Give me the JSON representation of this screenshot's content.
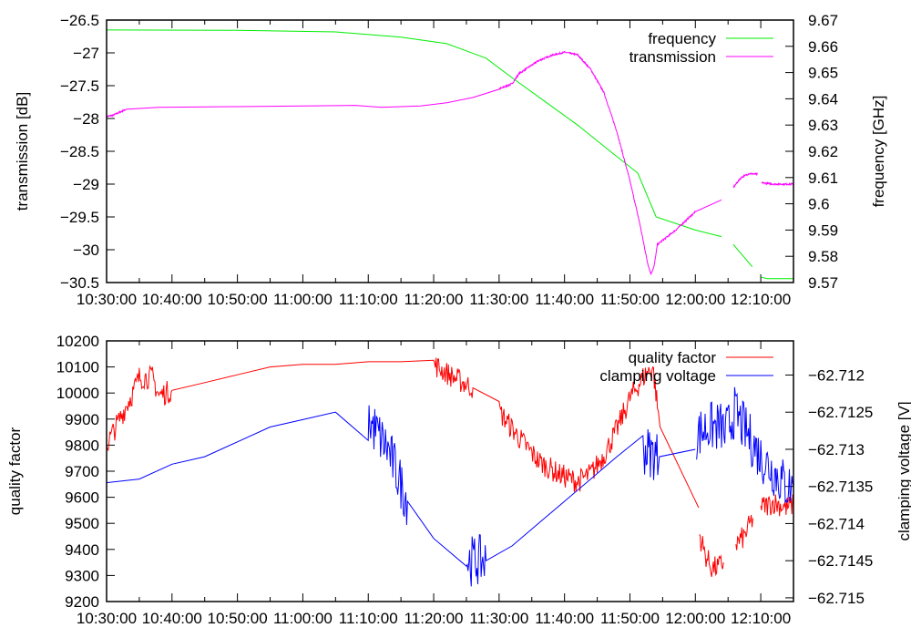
{
  "chart_data": [
    {
      "type": "line",
      "x_unit": "minutes after 10:30:00",
      "xlim": [
        0,
        105
      ],
      "x_tick_labels": [
        "10:30:00",
        "10:40:00",
        "10:50:00",
        "11:00:00",
        "11:10:00",
        "11:20:00",
        "11:30:00",
        "11:40:00",
        "11:50:00",
        "12:00:00",
        "12:10:00"
      ],
      "ylabel": "transmission [dB]",
      "ylim": [
        -30.5,
        -26.5
      ],
      "y_tick_labels": [
        "-26.5",
        "-27",
        "-27.5",
        "-28",
        "-28.5",
        "-29",
        "-29.5",
        "-30",
        "-30.5"
      ],
      "y2label": "frequency [GHz]",
      "y2lim": [
        9.57,
        9.67
      ],
      "y2_tick_labels": [
        "9.67",
        "9.66",
        "9.65",
        "9.64",
        "9.63",
        "9.62",
        "9.61",
        "9.6",
        "9.59",
        "9.58",
        "9.57"
      ],
      "legend_position": "top-right",
      "series": [
        {
          "name": "frequency",
          "axis": "y2",
          "color": "#00ee00",
          "noise": 0,
          "segments": [
            [
              [
                0,
                9.6662
              ],
              [
                20,
                9.6661
              ],
              [
                35,
                9.6655
              ],
              [
                45,
                9.6635
              ],
              [
                52,
                9.661
              ],
              [
                58,
                9.6555
              ],
              [
                62,
                9.648
              ],
              [
                67,
                9.639
              ],
              [
                72,
                9.63
              ],
              [
                77,
                9.62
              ],
              [
                81.2,
                9.6117
              ],
              [
                84,
                9.595
              ],
              [
                90,
                9.59
              ],
              [
                94,
                9.5875
              ]
            ],
            [
              [
                95.8,
                9.5845
              ],
              [
                98.7,
                9.576
              ]
            ],
            [
              [
                100.1,
                9.572
              ],
              [
                101,
                9.5715
              ],
              [
                105,
                9.5715
              ]
            ]
          ]
        },
        {
          "name": "transmission",
          "axis": "y",
          "color": "#ff00ff",
          "noise": 0.012,
          "segments": [
            [
              [
                0,
                -27.97
              ],
              [
                1,
                -27.95
              ],
              [
                3,
                -27.86
              ],
              [
                8,
                -27.83
              ],
              [
                20,
                -27.82
              ],
              [
                30,
                -27.81
              ],
              [
                38,
                -27.8
              ],
              [
                42,
                -27.83
              ],
              [
                48,
                -27.81
              ],
              [
                52,
                -27.76
              ],
              [
                56,
                -27.68
              ],
              [
                60,
                -27.55
              ],
              [
                62,
                -27.47
              ],
              [
                63,
                -27.32
              ],
              [
                66,
                -27.12
              ],
              [
                68,
                -27.04
              ],
              [
                70,
                -26.99
              ],
              [
                72,
                -27.03
              ],
              [
                74,
                -27.25
              ],
              [
                76,
                -27.6
              ],
              [
                78,
                -28.2
              ],
              [
                80,
                -28.95
              ],
              [
                81.5,
                -29.6
              ],
              [
                82.7,
                -30.2
              ],
              [
                83.2,
                -30.37
              ],
              [
                83.7,
                -30.25
              ],
              [
                84.2,
                -29.92
              ],
              [
                87,
                -29.7
              ],
              [
                90,
                -29.42
              ],
              [
                94,
                -29.24
              ]
            ],
            [
              [
                95.8,
                -29.05
              ],
              [
                97,
                -28.9
              ],
              [
                98.2,
                -28.84
              ],
              [
                99.5,
                -28.85
              ]
            ],
            [
              [
                100.1,
                -28.98
              ],
              [
                102,
                -29.0
              ],
              [
                105,
                -29.0
              ]
            ]
          ]
        }
      ]
    },
    {
      "type": "line",
      "x_unit": "minutes after 10:30:00",
      "xlim": [
        0,
        105
      ],
      "x_tick_labels": [
        "10:30:00",
        "10:40:00",
        "10:50:00",
        "11:00:00",
        "11:10:00",
        "11:20:00",
        "11:30:00",
        "11:40:00",
        "11:50:00",
        "12:00:00",
        "12:10:00"
      ],
      "ylabel": "quality factor",
      "ylim": [
        9200,
        10200
      ],
      "y_tick_labels": [
        "10200",
        "10100",
        "10000",
        "9900",
        "9800",
        "9700",
        "9600",
        "9500",
        "9400",
        "9300",
        "9200"
      ],
      "y2label": "clamping voltage [V]",
      "y2lim": [
        -62.71505,
        -62.71154
      ],
      "y2_tick_labels": [
        "-62.712",
        "-62.7125",
        "-62.713",
        "-62.7135",
        "-62.714",
        "-62.7145",
        "-62.715"
      ],
      "legend_position": "top-right",
      "series": [
        {
          "name": "quality factor",
          "axis": "y",
          "color": "#ff0000",
          "noise": 45,
          "segments": [
            [
              [
                0,
                9800
              ],
              [
                2,
                9900
              ],
              [
                4,
                10000
              ],
              [
                5,
                10060
              ],
              [
                7,
                10060
              ],
              [
                8,
                9990
              ],
              [
                10,
                10010
              ],
              [
                15,
                10040
              ],
              [
                20,
                10070
              ],
              [
                25,
                10100
              ],
              [
                30,
                10110
              ],
              [
                35,
                10110
              ],
              [
                40,
                10120
              ],
              [
                45,
                10120
              ],
              [
                50,
                10110
              ],
              [
                53,
                10060
              ],
              [
                56,
                10020
              ],
              [
                60,
                9930
              ],
              [
                63,
                9830
              ],
              [
                66,
                9740
              ],
              [
                69,
                9690
              ],
              [
                72,
                9660
              ],
              [
                74,
                9690
              ],
              [
                76,
                9760
              ],
              [
                78,
                9860
              ],
              [
                80,
                9980
              ],
              [
                82,
                10060
              ],
              [
                83.5,
                10100
              ],
              [
                84.2,
                9950
              ],
              [
                84.6,
                9870
              ],
              [
                90.5,
                9560
              ]
            ],
            [
              [
                90.6,
                9460
              ],
              [
                91.5,
                9380
              ],
              [
                92.5,
                9330
              ],
              [
                93.5,
                9330
              ],
              [
                94.3,
                9350
              ]
            ],
            [
              [
                96.2,
                9420
              ],
              [
                97.5,
                9450
              ],
              [
                98.8,
                9520
              ]
            ],
            [
              [
                100,
                9560
              ],
              [
                102,
                9580
              ],
              [
                104,
                9560
              ],
              [
                105,
                9570
              ]
            ]
          ]
        },
        {
          "name": "clamping voltage",
          "axis": "y2",
          "color": "#0000ff",
          "noise": 0.00035,
          "segments": [
            [
              [
                0,
                -62.71345
              ],
              [
                5,
                -62.7134
              ],
              [
                10,
                -62.7132
              ],
              [
                15,
                -62.7131
              ],
              [
                20,
                -62.7129
              ],
              [
                25,
                -62.7127
              ],
              [
                30,
                -62.7126
              ],
              [
                35,
                -62.7125
              ],
              [
                40,
                -62.7126
              ],
              [
                43,
                -62.713
              ],
              [
                46,
                -62.7137
              ],
              [
                50,
                -62.7142
              ],
              [
                55,
                -62.7145
              ],
              [
                58,
                -62.7145
              ],
              [
                62,
                -62.7143
              ],
              [
                66,
                -62.714
              ],
              [
                70,
                -62.7137
              ],
              [
                74,
                -62.7134
              ],
              [
                78,
                -62.7131
              ],
              [
                82,
                -62.713
              ],
              [
                84.5,
                -62.7131
              ],
              [
                90,
                -62.713
              ]
            ],
            [
              [
                90.2,
                -62.7128
              ],
              [
                92,
                -62.7127
              ],
              [
                94,
                -62.7127
              ],
              [
                94.5,
                -62.7128
              ],
              [
                96,
                -62.7125
              ],
              [
                98,
                -62.7128
              ],
              [
                100,
                -62.7131
              ],
              [
                102,
                -62.7133
              ],
              [
                104,
                -62.7135
              ],
              [
                105,
                -62.7135
              ]
            ]
          ]
        }
      ]
    }
  ]
}
